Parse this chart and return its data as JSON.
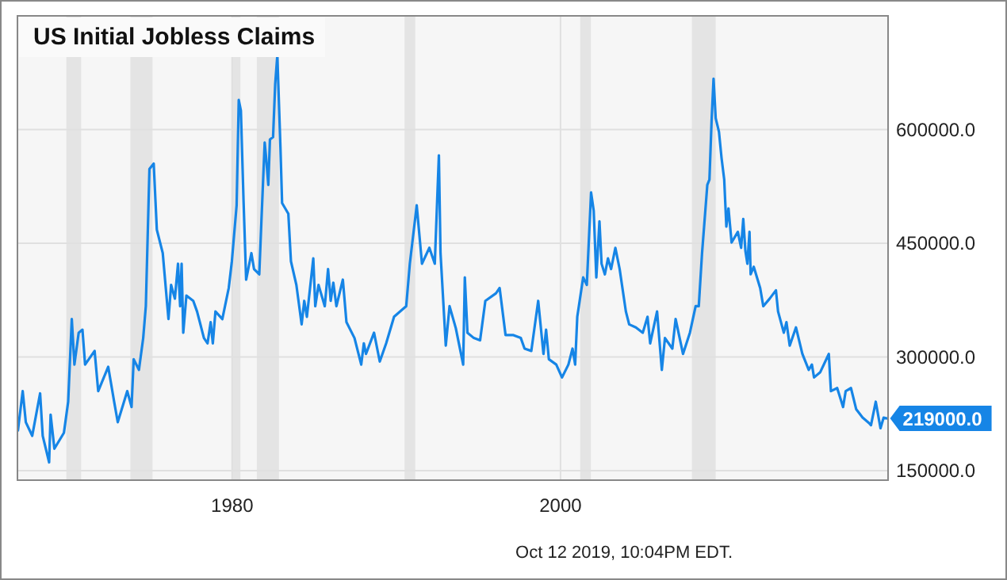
{
  "chart_data": {
    "type": "line",
    "title": "US Initial Jobless Claims",
    "annotations": [
      {
        "text": "219000.0",
        "x": 2019.88,
        "y": 219000
      },
      "Oct 12 2019, 10:04PM EDT."
    ],
    "xlim": [
      1966.92,
      2019.95
    ],
    "xticks": [
      1980,
      2000
    ],
    "ylim": [
      137500,
      750000
    ],
    "yticks": [
      {
        "value": 150000,
        "label": "150000.0"
      },
      {
        "value": 300000,
        "label": "300000.0"
      },
      {
        "value": 450000,
        "label": "450000.0"
      },
      {
        "value": 600000,
        "label": "600000.0"
      }
    ],
    "grid": true,
    "marker": "none",
    "line_style": "solid",
    "bands": [
      {
        "axis": "x",
        "from": 1969.9,
        "to": 1970.8,
        "color": "#e4e4e4"
      },
      {
        "axis": "x",
        "from": 1973.8,
        "to": 1975.15,
        "color": "#e4e4e4"
      },
      {
        "axis": "x",
        "from": 1979.95,
        "to": 1980.5,
        "color": "#e4e4e4"
      },
      {
        "axis": "x",
        "from": 1981.5,
        "to": 1982.85,
        "color": "#e4e4e4"
      },
      {
        "axis": "x",
        "from": 1990.5,
        "to": 1991.15,
        "color": "#e4e4e4"
      },
      {
        "axis": "x",
        "from": 2001.2,
        "to": 2001.85,
        "color": "#e4e4e4"
      },
      {
        "axis": "x",
        "from": 2008.0,
        "to": 2009.45,
        "color": "#e4e4e4"
      }
    ],
    "series": [
      {
        "color": "#1685e6",
        "x": [
          1966.95,
          1967.24,
          1967.43,
          1967.82,
          1968.3,
          1968.46,
          1968.85,
          1968.94,
          1969.17,
          1969.75,
          1970.01,
          1970.23,
          1970.39,
          1970.65,
          1970.88,
          1971.04,
          1971.62,
          1971.84,
          1972.45,
          1972.81,
          1973.03,
          1973.61,
          1973.87,
          1974.0,
          1974.32,
          1974.58,
          1974.74,
          1974.96,
          1975.22,
          1975.41,
          1975.77,
          1976.12,
          1976.28,
          1976.51,
          1976.7,
          1976.83,
          1976.92,
          1977.02,
          1977.21,
          1977.63,
          1977.86,
          1978.28,
          1978.5,
          1978.69,
          1978.82,
          1978.98,
          1979.4,
          1979.79,
          1979.98,
          1980.27,
          1980.4,
          1980.53,
          1980.69,
          1980.85,
          1981.17,
          1981.33,
          1981.65,
          1981.78,
          1981.98,
          1982.07,
          1982.2,
          1982.3,
          1982.49,
          1982.62,
          1982.75,
          1982.94,
          1983.04,
          1983.42,
          1983.58,
          1983.91,
          1984.23,
          1984.39,
          1984.55,
          1984.94,
          1985.06,
          1985.26,
          1985.64,
          1985.84,
          1986.0,
          1986.16,
          1986.35,
          1986.74,
          1986.96,
          1987.45,
          1987.86,
          1988.02,
          1988.15,
          1988.64,
          1988.99,
          1989.38,
          1989.86,
          1990.6,
          1990.82,
          1991.24,
          1991.56,
          1992.01,
          1992.34,
          1992.59,
          1992.69,
          1993.01,
          1993.24,
          1993.62,
          1994.07,
          1994.17,
          1994.33,
          1994.72,
          1995.1,
          1995.42,
          1996.07,
          1996.29,
          1996.65,
          1997.1,
          1997.58,
          1997.81,
          1998.22,
          1998.64,
          1998.96,
          1999.12,
          1999.29,
          1999.74,
          2000.09,
          2000.48,
          2000.73,
          2000.89,
          2001.02,
          2001.38,
          2001.6,
          2001.86,
          2002.02,
          2002.18,
          2002.37,
          2002.5,
          2002.7,
          2002.89,
          2003.08,
          2003.34,
          2003.6,
          2003.98,
          2004.18,
          2004.59,
          2005.01,
          2005.3,
          2005.46,
          2005.88,
          2006.17,
          2006.36,
          2006.81,
          2007.01,
          2007.46,
          2007.88,
          2008.23,
          2008.42,
          2008.62,
          2008.94,
          2009.07,
          2009.2,
          2009.32,
          2009.45,
          2009.65,
          2009.81,
          2009.97,
          2010.1,
          2010.23,
          2010.42,
          2010.8,
          2011.0,
          2011.13,
          2011.26,
          2011.38,
          2011.51,
          2011.58,
          2011.77,
          2012.16,
          2012.35,
          2012.74,
          2013.12,
          2013.25,
          2013.6,
          2013.76,
          2013.96,
          2014.34,
          2014.73,
          2015.12,
          2015.31,
          2015.44,
          2015.82,
          2016.34,
          2016.47,
          2016.85,
          2017.21,
          2017.37,
          2017.69,
          2018.01,
          2018.4,
          2018.78,
          2018.91,
          2019.2,
          2019.49,
          2019.68,
          2019.88
        ],
        "values": [
          203000,
          255000,
          214000,
          196000,
          252000,
          196000,
          161000,
          224000,
          179000,
          200000,
          241000,
          350000,
          290000,
          332000,
          336000,
          290000,
          308000,
          255000,
          287000,
          241000,
          214000,
          255000,
          234000,
          297000,
          283000,
          325000,
          367000,
          548000,
          555000,
          468000,
          437000,
          350000,
          395000,
          377000,
          423000,
          367000,
          423000,
          332000,
          381000,
          374000,
          360000,
          325000,
          318000,
          346000,
          318000,
          360000,
          350000,
          391000,
          426000,
          500000,
          639000,
          625000,
          507000,
          402000,
          437000,
          416000,
          409000,
          479000,
          583000,
          562000,
          527000,
          587000,
          590000,
          660000,
          698000,
          576000,
          503000,
          489000,
          426000,
          395000,
          343000,
          374000,
          353000,
          430000,
          367000,
          395000,
          367000,
          416000,
          374000,
          398000,
          367000,
          402000,
          346000,
          325000,
          290000,
          318000,
          304000,
          332000,
          294000,
          318000,
          353000,
          367000,
          423000,
          500000,
          423000,
          444000,
          423000,
          566000,
          437000,
          315000,
          367000,
          338000,
          290000,
          405000,
          332000,
          325000,
          322000,
          374000,
          384000,
          391000,
          329000,
          329000,
          325000,
          311000,
          308000,
          374000,
          304000,
          336000,
          297000,
          290000,
          273000,
          290000,
          311000,
          290000,
          353000,
          405000,
          395000,
          517000,
          493000,
          405000,
          479000,
          423000,
          409000,
          430000,
          416000,
          444000,
          416000,
          360000,
          343000,
          339000,
          332000,
          353000,
          318000,
          360000,
          283000,
          325000,
          311000,
          350000,
          304000,
          332000,
          367000,
          367000,
          437000,
          527000,
          534000,
          611000,
          667000,
          615000,
          597000,
          562000,
          534000,
          472000,
          496000,
          451000,
          465000,
          444000,
          482000,
          440000,
          423000,
          465000,
          409000,
          419000,
          391000,
          367000,
          377000,
          388000,
          360000,
          332000,
          346000,
          315000,
          339000,
          304000,
          283000,
          290000,
          273000,
          280000,
          304000,
          255000,
          259000,
          234000,
          255000,
          259000,
          231000,
          220000,
          213000,
          210000,
          241000,
          206000,
          220000,
          219000
        ]
      }
    ]
  }
}
